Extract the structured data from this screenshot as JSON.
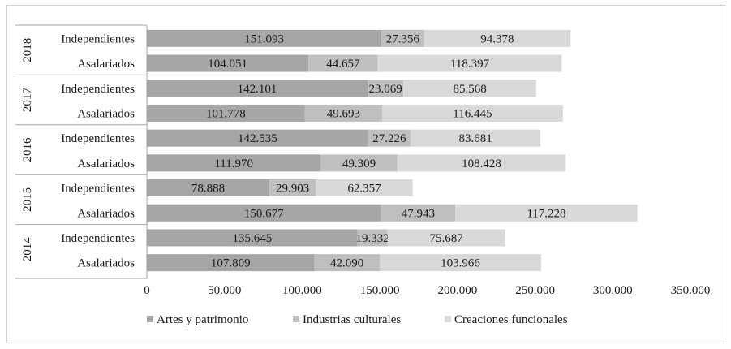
{
  "chart_data": {
    "type": "bar",
    "orientation": "horizontal",
    "stacked": true,
    "title": "",
    "xlabel": "",
    "ylabel": "",
    "xlim": [
      0,
      350000
    ],
    "x_ticks": [
      0,
      50000,
      100000,
      150000,
      200000,
      250000,
      300000,
      350000
    ],
    "x_tick_labels": [
      "0",
      "50.000",
      "100.000",
      "150.000",
      "200.000",
      "250.000",
      "300.000",
      "350.000"
    ],
    "grid": false,
    "legend_position": "bottom",
    "groups": [
      {
        "label": "2018",
        "categories": [
          "Independientes",
          "Asalariados"
        ]
      },
      {
        "label": "2017",
        "categories": [
          "Independientes",
          "Asalariados"
        ]
      },
      {
        "label": "2016",
        "categories": [
          "Independientes",
          "Asalariados"
        ]
      },
      {
        "label": "2015",
        "categories": [
          "Independientes",
          "Asalariados"
        ]
      },
      {
        "label": "2014",
        "categories": [
          "Independientes",
          "Asalariados"
        ]
      }
    ],
    "series": [
      {
        "name": "Artes y patrimonio",
        "color": "#a6a6a6",
        "values": [
          151093,
          104051,
          142101,
          101778,
          142535,
          111970,
          78888,
          150677,
          135645,
          107809
        ],
        "labels": [
          "151.093",
          "104.051",
          "142.101",
          "101.778",
          "142.535",
          "111.970",
          "78.888",
          "150.677",
          "135.645",
          "107.809"
        ]
      },
      {
        "name": "Industrias culturales",
        "color": "#bfbfbf",
        "values": [
          27356,
          44657,
          23069,
          49693,
          27226,
          49309,
          29903,
          47943,
          19332,
          42090
        ],
        "labels": [
          "27.356",
          "44.657",
          "23.069",
          "49.693",
          "27.226",
          "49.309",
          "29.903",
          "47.943",
          "19.332",
          "42.090"
        ]
      },
      {
        "name": "Creaciones funcionales",
        "color": "#d9d9d9",
        "values": [
          94378,
          118397,
          85568,
          116445,
          83681,
          108428,
          62357,
          117228,
          75687,
          103966
        ],
        "labels": [
          "94.378",
          "118.397",
          "85.568",
          "116.445",
          "83.681",
          "108.428",
          "62.357",
          "117.228",
          "75.687",
          "103.966"
        ]
      }
    ]
  }
}
